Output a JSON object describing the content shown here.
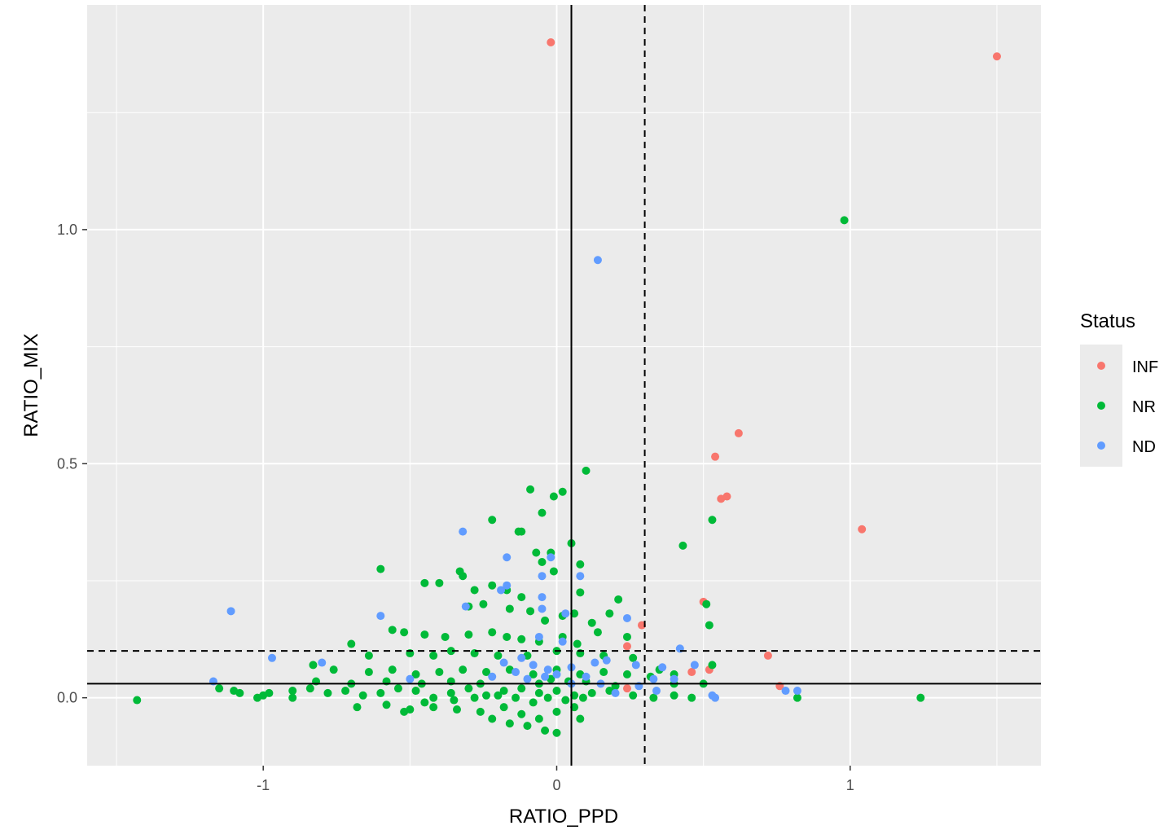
{
  "chart_data": {
    "type": "scatter",
    "title": "",
    "xlabel": "RATIO_PPD",
    "ylabel": "RATIO_MIX",
    "xlim": [
      -1.6,
      1.65
    ],
    "ylim": [
      -0.145,
      1.48
    ],
    "x_ticks": [
      -1,
      0,
      1
    ],
    "x_tick_labels": [
      "-1",
      "0",
      "1"
    ],
    "y_ticks": [
      0.0,
      0.5,
      1.0
    ],
    "y_tick_labels": [
      "0.0",
      "0.5",
      "1.0"
    ],
    "grid": true,
    "reference_lines": {
      "solid_vertical_x": 0.05,
      "dashed_vertical_x": 0.3,
      "solid_horizontal_y": 0.03,
      "dashed_horizontal_y": 0.1
    },
    "legend": {
      "title": "Status",
      "position": "right"
    },
    "series": [
      {
        "name": "INF",
        "color": "#F8766D",
        "points": [
          [
            -0.02,
            1.4
          ],
          [
            1.5,
            1.37
          ],
          [
            0.62,
            0.565
          ],
          [
            0.54,
            0.515
          ],
          [
            0.58,
            0.43
          ],
          [
            0.56,
            0.425
          ],
          [
            1.04,
            0.36
          ],
          [
            0.5,
            0.205
          ],
          [
            0.29,
            0.155
          ],
          [
            0.24,
            0.11
          ],
          [
            0.72,
            0.09
          ],
          [
            0.46,
            0.055
          ],
          [
            0.52,
            0.06
          ],
          [
            0.76,
            0.025
          ],
          [
            0.24,
            0.02
          ]
        ]
      },
      {
        "name": "NR",
        "color": "#00BA38",
        "points": [
          [
            0.98,
            1.02
          ],
          [
            0.1,
            0.485
          ],
          [
            0.53,
            0.38
          ],
          [
            0.43,
            0.325
          ],
          [
            0.51,
            0.2
          ],
          [
            0.52,
            0.155
          ],
          [
            -0.09,
            0.445
          ],
          [
            0.02,
            0.44
          ],
          [
            -0.01,
            0.43
          ],
          [
            -0.05,
            0.395
          ],
          [
            -0.22,
            0.38
          ],
          [
            -0.12,
            0.355
          ],
          [
            -0.13,
            0.355
          ],
          [
            0.05,
            0.33
          ],
          [
            -0.02,
            0.31
          ],
          [
            -0.07,
            0.31
          ],
          [
            -0.05,
            0.29
          ],
          [
            -0.6,
            0.275
          ],
          [
            -0.33,
            0.27
          ],
          [
            -0.01,
            0.27
          ],
          [
            0.08,
            0.285
          ],
          [
            -0.32,
            0.26
          ],
          [
            0.21,
            0.21
          ],
          [
            0.08,
            0.225
          ],
          [
            0.18,
            0.18
          ],
          [
            -0.45,
            0.245
          ],
          [
            -0.4,
            0.245
          ],
          [
            -0.28,
            0.23
          ],
          [
            -0.22,
            0.24
          ],
          [
            -0.17,
            0.23
          ],
          [
            -0.12,
            0.215
          ],
          [
            -0.3,
            0.195
          ],
          [
            -0.25,
            0.2
          ],
          [
            -0.16,
            0.19
          ],
          [
            -0.09,
            0.185
          ],
          [
            -0.04,
            0.165
          ],
          [
            0.02,
            0.175
          ],
          [
            0.06,
            0.18
          ],
          [
            0.12,
            0.16
          ],
          [
            -0.56,
            0.145
          ],
          [
            -0.52,
            0.14
          ],
          [
            -0.45,
            0.135
          ],
          [
            -0.38,
            0.13
          ],
          [
            -0.3,
            0.135
          ],
          [
            -0.22,
            0.14
          ],
          [
            -0.17,
            0.13
          ],
          [
            -0.12,
            0.125
          ],
          [
            -0.06,
            0.12
          ],
          [
            0.02,
            0.13
          ],
          [
            0.07,
            0.115
          ],
          [
            0.14,
            0.14
          ],
          [
            0.24,
            0.13
          ],
          [
            -0.7,
            0.115
          ],
          [
            -0.64,
            0.09
          ],
          [
            -0.5,
            0.095
          ],
          [
            -0.42,
            0.09
          ],
          [
            -0.36,
            0.1
          ],
          [
            -0.28,
            0.095
          ],
          [
            -0.2,
            0.09
          ],
          [
            -0.1,
            0.09
          ],
          [
            0.0,
            0.1
          ],
          [
            0.08,
            0.095
          ],
          [
            0.16,
            0.09
          ],
          [
            0.26,
            0.085
          ],
          [
            0.35,
            0.06
          ],
          [
            0.4,
            0.05
          ],
          [
            -0.83,
            0.07
          ],
          [
            -0.76,
            0.06
          ],
          [
            -0.64,
            0.055
          ],
          [
            -0.56,
            0.06
          ],
          [
            -0.48,
            0.05
          ],
          [
            -0.4,
            0.055
          ],
          [
            -0.32,
            0.06
          ],
          [
            -0.24,
            0.055
          ],
          [
            -0.16,
            0.06
          ],
          [
            -0.08,
            0.05
          ],
          [
            0.0,
            0.06
          ],
          [
            0.08,
            0.05
          ],
          [
            0.16,
            0.055
          ],
          [
            0.24,
            0.05
          ],
          [
            0.32,
            0.045
          ],
          [
            0.4,
            0.03
          ],
          [
            0.5,
            0.03
          ],
          [
            0.53,
            0.07
          ],
          [
            -1.43,
            -0.005
          ],
          [
            -1.15,
            0.02
          ],
          [
            -1.08,
            0.01
          ],
          [
            -1.02,
            0.0
          ],
          [
            -0.98,
            0.01
          ],
          [
            -0.9,
            0.015
          ],
          [
            -0.84,
            0.02
          ],
          [
            -0.78,
            0.01
          ],
          [
            -0.72,
            0.015
          ],
          [
            -0.66,
            0.005
          ],
          [
            -0.6,
            0.01
          ],
          [
            -0.54,
            0.02
          ],
          [
            -0.48,
            0.015
          ],
          [
            -0.42,
            0.0
          ],
          [
            -0.36,
            0.01
          ],
          [
            -0.3,
            0.02
          ],
          [
            -0.24,
            0.005
          ],
          [
            -0.18,
            0.015
          ],
          [
            -0.12,
            0.02
          ],
          [
            -0.06,
            0.01
          ],
          [
            0.0,
            0.015
          ],
          [
            0.06,
            0.005
          ],
          [
            0.12,
            0.01
          ],
          [
            0.18,
            0.015
          ],
          [
            0.26,
            0.005
          ],
          [
            0.33,
            0.0
          ],
          [
            0.4,
            0.005
          ],
          [
            0.46,
            0.0
          ],
          [
            0.82,
            0.0
          ],
          [
            1.24,
            0.0
          ],
          [
            -0.68,
            -0.02
          ],
          [
            -0.58,
            -0.015
          ],
          [
            -0.5,
            -0.025
          ],
          [
            -0.42,
            -0.02
          ],
          [
            -0.34,
            -0.025
          ],
          [
            -0.26,
            -0.03
          ],
          [
            -0.18,
            -0.02
          ],
          [
            -0.12,
            -0.035
          ],
          [
            -0.06,
            -0.045
          ],
          [
            0.0,
            -0.03
          ],
          [
            0.06,
            -0.02
          ],
          [
            -0.1,
            -0.06
          ],
          [
            -0.04,
            -0.07
          ],
          [
            0.0,
            -0.075
          ],
          [
            -0.22,
            -0.045
          ],
          [
            -0.16,
            -0.055
          ],
          [
            0.08,
            -0.045
          ],
          [
            -0.52,
            -0.03
          ],
          [
            -0.45,
            -0.01
          ],
          [
            -0.35,
            -0.005
          ],
          [
            -0.28,
            0.0
          ],
          [
            -0.2,
            0.005
          ],
          [
            -0.14,
            0.0
          ],
          [
            -0.08,
            -0.01
          ],
          [
            -0.03,
            0.0
          ],
          [
            0.03,
            -0.005
          ],
          [
            0.09,
            0.0
          ],
          [
            -0.02,
            0.04
          ],
          [
            0.04,
            0.035
          ],
          [
            -0.06,
            0.03
          ],
          [
            0.1,
            0.035
          ],
          [
            0.2,
            0.025
          ],
          [
            -0.26,
            0.03
          ],
          [
            -0.36,
            0.035
          ],
          [
            -0.46,
            0.03
          ],
          [
            -0.58,
            0.035
          ],
          [
            -0.7,
            0.03
          ],
          [
            -0.82,
            0.035
          ],
          [
            -0.9,
            0.0
          ],
          [
            -1.0,
            0.005
          ],
          [
            -1.1,
            0.015
          ]
        ]
      },
      {
        "name": "ND",
        "color": "#619CFF",
        "points": [
          [
            0.14,
            0.935
          ],
          [
            -0.32,
            0.355
          ],
          [
            -0.17,
            0.3
          ],
          [
            -0.02,
            0.3
          ],
          [
            0.08,
            0.26
          ],
          [
            -0.05,
            0.26
          ],
          [
            -1.11,
            0.185
          ],
          [
            -0.6,
            0.175
          ],
          [
            -0.31,
            0.195
          ],
          [
            -0.19,
            0.23
          ],
          [
            -0.17,
            0.24
          ],
          [
            -0.05,
            0.215
          ],
          [
            -0.05,
            0.19
          ],
          [
            0.24,
            0.17
          ],
          [
            0.03,
            0.18
          ],
          [
            -0.06,
            0.13
          ],
          [
            0.02,
            0.12
          ],
          [
            0.42,
            0.105
          ],
          [
            0.36,
            0.065
          ],
          [
            0.47,
            0.07
          ],
          [
            -0.97,
            0.085
          ],
          [
            -0.8,
            0.075
          ],
          [
            -0.18,
            0.075
          ],
          [
            -0.12,
            0.085
          ],
          [
            -0.08,
            0.07
          ],
          [
            -0.03,
            0.06
          ],
          [
            0.05,
            0.065
          ],
          [
            0.13,
            0.075
          ],
          [
            0.17,
            0.08
          ],
          [
            0.27,
            0.07
          ],
          [
            0.33,
            0.04
          ],
          [
            0.4,
            0.04
          ],
          [
            -1.17,
            0.035
          ],
          [
            -0.5,
            0.04
          ],
          [
            -0.22,
            0.045
          ],
          [
            -0.1,
            0.04
          ],
          [
            0.05,
            0.03
          ],
          [
            0.15,
            0.03
          ],
          [
            0.28,
            0.025
          ],
          [
            0.34,
            0.015
          ],
          [
            0.53,
            0.005
          ],
          [
            0.54,
            0.0
          ],
          [
            0.78,
            0.015
          ],
          [
            0.82,
            0.015
          ],
          [
            -0.04,
            0.045
          ],
          [
            0.0,
            0.05
          ],
          [
            0.1,
            0.045
          ],
          [
            -0.14,
            0.055
          ],
          [
            0.2,
            0.01
          ]
        ]
      }
    ]
  }
}
